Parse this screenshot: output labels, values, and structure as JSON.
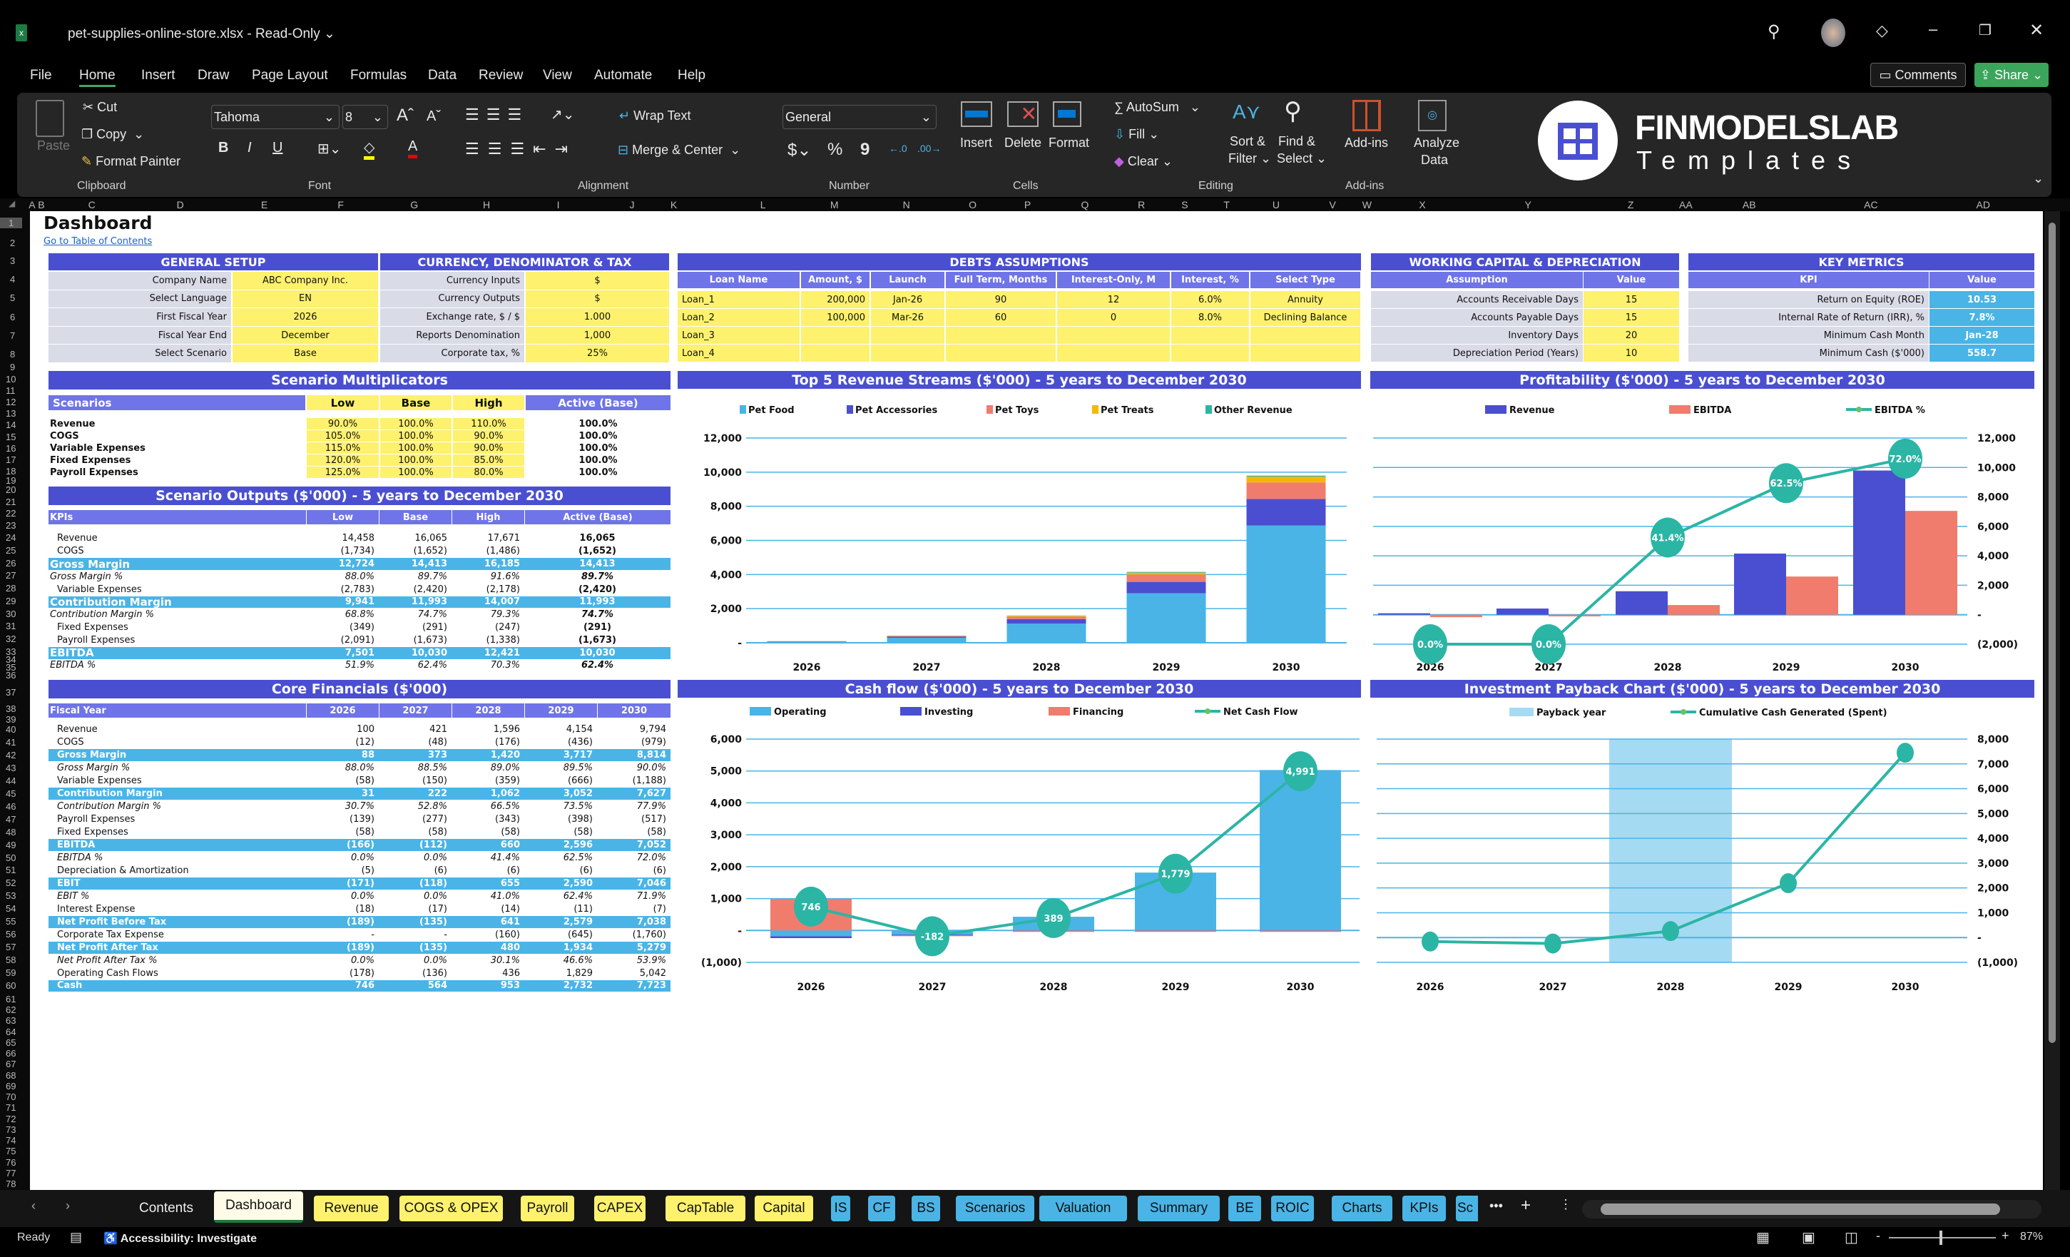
{
  "app": {
    "title": "pet-supplies-online-store.xlsx",
    "mode": "Read-Only",
    "comments": "Comments",
    "share": "Share"
  },
  "menu": [
    "File",
    "Home",
    "Insert",
    "Draw",
    "Page Layout",
    "Formulas",
    "Data",
    "Review",
    "View",
    "Automate",
    "Help"
  ],
  "menu_active": "Home",
  "ribbon": {
    "clipboard": {
      "paste": "Paste",
      "cut": "Cut",
      "copy": "Copy",
      "format_painter": "Format Painter",
      "label": "Clipboard"
    },
    "font": {
      "name": "Tahoma",
      "size": "8",
      "label": "Font",
      "bold": "B",
      "italic": "I",
      "underline": "U"
    },
    "alignment": {
      "wrap": "Wrap Text",
      "merge": "Merge & Center",
      "label": "Alignment"
    },
    "number": {
      "format": "General",
      "currency": "$",
      "percent": "%",
      "comma": "9",
      "label": "Number"
    },
    "cells": {
      "insert": "Insert",
      "delete": "Delete",
      "format": "Format",
      "label": "Cells"
    },
    "editing": {
      "autosum": "AutoSum",
      "fill": "Fill",
      "clear": "Clear",
      "sort1": "Sort &",
      "sort2": "Filter",
      "find1": "Find &",
      "find2": "Select",
      "label": "Editing"
    },
    "addins": {
      "button": "Add-ins",
      "label": "Add-ins"
    },
    "analyze": {
      "l1": "Analyze",
      "l2": "Data"
    }
  },
  "logo": {
    "name": "FINMODELSLAB",
    "tagline": "Templates"
  },
  "sheet": {
    "columns": [
      "A",
      "B",
      "C",
      "D",
      "E",
      "F",
      "G",
      "H",
      "I",
      "J",
      "K",
      "L",
      "M",
      "N",
      "O",
      "P",
      "Q",
      "R",
      "S",
      "T",
      "U",
      "V",
      "W",
      "X",
      "Y",
      "Z",
      "AA",
      "AB",
      "AC",
      "AD"
    ],
    "row_count": 78,
    "title": "Dashboard",
    "link": "Go to Table of Contents"
  },
  "general_setup": {
    "title": "GENERAL SETUP",
    "rows": [
      {
        "label": "Company Name",
        "value": "ABC Company Inc."
      },
      {
        "label": "Select Language",
        "value": "EN"
      },
      {
        "label": "First Fiscal Year",
        "value": "2026"
      },
      {
        "label": "Fiscal Year End",
        "value": "December"
      },
      {
        "label": "Select Scenario",
        "value": "Base"
      }
    ]
  },
  "currency": {
    "title": "CURRENCY, DENOMINATOR & TAX",
    "rows": [
      {
        "label": "Currency Inputs",
        "value": "$"
      },
      {
        "label": "Currency Outputs",
        "value": "$"
      },
      {
        "label": "Exchange rate, $ / $",
        "value": "1.000"
      },
      {
        "label": "Reports Denomination",
        "value": "1,000"
      },
      {
        "label": "Corporate tax, %",
        "value": "25%"
      }
    ]
  },
  "debts": {
    "title": "DEBTS ASSUMPTIONS",
    "headers": [
      "Loan Name",
      "Amount, $",
      "Launch",
      "Full Term, Months",
      "Interest-Only, M",
      "Interest, %",
      "Select Type"
    ],
    "rows": [
      [
        "Loan_1",
        "200,000",
        "Jan-26",
        "90",
        "12",
        "6.0%",
        "Annuity"
      ],
      [
        "Loan_2",
        "100,000",
        "Mar-26",
        "60",
        "0",
        "8.0%",
        "Declining Balance"
      ],
      [
        "Loan_3",
        "",
        "",
        "",
        "",
        "",
        ""
      ],
      [
        "Loan_4",
        "",
        "",
        "",
        "",
        "",
        ""
      ]
    ]
  },
  "working_capital": {
    "title": "WORKING CAPITAL & DEPRECIATION",
    "headers": [
      "Assumption",
      "Value"
    ],
    "rows": [
      {
        "label": "Accounts Receivable Days",
        "value": "15"
      },
      {
        "label": "Accounts Payable Days",
        "value": "15"
      },
      {
        "label": "Inventory Days",
        "value": "20"
      },
      {
        "label": "Depreciation Period (Years)",
        "value": "10"
      }
    ]
  },
  "key_metrics": {
    "title": "KEY METRICS",
    "headers": [
      "KPI",
      "Value"
    ],
    "rows": [
      {
        "label": "Return on Equity (ROE)",
        "value": "10.53"
      },
      {
        "label": "Internal Rate of Return (IRR), %",
        "value": "7.8%"
      },
      {
        "label": "Minimum Cash Month",
        "value": "Jan-28"
      },
      {
        "label": "Minimum Cash ($'000)",
        "value": "558.7"
      }
    ]
  },
  "scenario_multiplicators": {
    "title": "Scenario Multiplicators",
    "headers": [
      "Scenarios",
      "Low",
      "Base",
      "High",
      "Active (Base)"
    ],
    "rows": [
      [
        "Revenue",
        "90.0%",
        "100.0%",
        "110.0%",
        "100.0%"
      ],
      [
        "COGS",
        "105.0%",
        "100.0%",
        "90.0%",
        "100.0%"
      ],
      [
        "Variable Expenses",
        "115.0%",
        "100.0%",
        "90.0%",
        "100.0%"
      ],
      [
        "Fixed Expenses",
        "120.0%",
        "100.0%",
        "85.0%",
        "100.0%"
      ],
      [
        "Payroll Expenses",
        "125.0%",
        "100.0%",
        "80.0%",
        "100.0%"
      ]
    ]
  },
  "scenario_outputs": {
    "title": "Scenario Outputs ($'000) - 5 years to December 2030",
    "headers": [
      "KPIs",
      "Low",
      "Base",
      "High",
      "Active (Base)"
    ],
    "rows": [
      {
        "kind": "line",
        "label": "Revenue",
        "values": [
          "14,458",
          "16,065",
          "17,671",
          "16,065"
        ]
      },
      {
        "kind": "line",
        "label": "COGS",
        "values": [
          "(1,734)",
          "(1,652)",
          "(1,486)",
          "(1,652)"
        ]
      },
      {
        "kind": "total",
        "label": "Gross Margin",
        "values": [
          "12,724",
          "14,413",
          "16,185",
          "14,413"
        ]
      },
      {
        "kind": "pct",
        "label": "Gross Margin %",
        "values": [
          "88.0%",
          "89.7%",
          "91.6%",
          "89.7%"
        ]
      },
      {
        "kind": "line",
        "label": "Variable Expenses",
        "values": [
          "(2,783)",
          "(2,420)",
          "(2,178)",
          "(2,420)"
        ]
      },
      {
        "kind": "total",
        "label": "Contribution Margin",
        "values": [
          "9,941",
          "11,993",
          "14,007",
          "11,993"
        ]
      },
      {
        "kind": "pct",
        "label": "Contribution Margin %",
        "values": [
          "68.8%",
          "74.7%",
          "79.3%",
          "74.7%"
        ]
      },
      {
        "kind": "line",
        "label": "Fixed Expenses",
        "values": [
          "(349)",
          "(291)",
          "(247)",
          "(291)"
        ]
      },
      {
        "kind": "line",
        "label": "Payroll Expenses",
        "values": [
          "(2,091)",
          "(1,673)",
          "(1,338)",
          "(1,673)"
        ]
      },
      {
        "kind": "total",
        "label": "EBITDA",
        "values": [
          "7,501",
          "10,030",
          "12,421",
          "10,030"
        ]
      },
      {
        "kind": "pct",
        "label": "EBITDA %",
        "values": [
          "51.9%",
          "62.4%",
          "70.3%",
          "62.4%"
        ]
      }
    ]
  },
  "core_financials": {
    "title": "Core Financials ($'000)",
    "headers": [
      "Fiscal Year",
      "2026",
      "2027",
      "2028",
      "2029",
      "2030"
    ],
    "rows": [
      {
        "kind": "line",
        "label": "Revenue",
        "values": [
          "100",
          "421",
          "1,596",
          "4,154",
          "9,794"
        ]
      },
      {
        "kind": "line",
        "label": "COGS",
        "values": [
          "(12)",
          "(48)",
          "(176)",
          "(436)",
          "(979)"
        ]
      },
      {
        "kind": "total",
        "label": "Gross Margin",
        "values": [
          "88",
          "373",
          "1,420",
          "3,717",
          "8,814"
        ]
      },
      {
        "kind": "pct",
        "label": "Gross Margin %",
        "values": [
          "88.0%",
          "88.5%",
          "89.0%",
          "89.5%",
          "90.0%"
        ]
      },
      {
        "kind": "line",
        "label": "Variable Expenses",
        "values": [
          "(58)",
          "(150)",
          "(359)",
          "(666)",
          "(1,188)"
        ]
      },
      {
        "kind": "total",
        "label": "Contribution Margin",
        "values": [
          "31",
          "222",
          "1,062",
          "3,052",
          "7,627"
        ]
      },
      {
        "kind": "pct",
        "label": "Contribution Margin %",
        "values": [
          "30.7%",
          "52.8%",
          "66.5%",
          "73.5%",
          "77.9%"
        ]
      },
      {
        "kind": "line",
        "label": "Payroll Expenses",
        "values": [
          "(139)",
          "(277)",
          "(343)",
          "(398)",
          "(517)"
        ]
      },
      {
        "kind": "line",
        "label": "Fixed Expenses",
        "values": [
          "(58)",
          "(58)",
          "(58)",
          "(58)",
          "(58)"
        ]
      },
      {
        "kind": "total",
        "label": "EBITDA",
        "values": [
          "(166)",
          "(112)",
          "660",
          "2,596",
          "7,052"
        ]
      },
      {
        "kind": "pct",
        "label": "EBITDA %",
        "values": [
          "0.0%",
          "0.0%",
          "41.4%",
          "62.5%",
          "72.0%"
        ]
      },
      {
        "kind": "line",
        "label": "Depreciation & Amortization",
        "values": [
          "(5)",
          "(6)",
          "(6)",
          "(6)",
          "(6)"
        ]
      },
      {
        "kind": "total",
        "label": "EBIT",
        "values": [
          "(171)",
          "(118)",
          "655",
          "2,590",
          "7,046"
        ]
      },
      {
        "kind": "pct",
        "label": "EBIT %",
        "values": [
          "0.0%",
          "0.0%",
          "41.0%",
          "62.4%",
          "71.9%"
        ]
      },
      {
        "kind": "line",
        "label": "Interest Expense",
        "values": [
          "(18)",
          "(17)",
          "(14)",
          "(11)",
          "(7)"
        ]
      },
      {
        "kind": "total",
        "label": "Net Profit Before Tax",
        "values": [
          "(189)",
          "(135)",
          "641",
          "2,579",
          "7,038"
        ]
      },
      {
        "kind": "line",
        "label": "Corporate Tax Expense",
        "values": [
          "-",
          "-",
          "(160)",
          "(645)",
          "(1,760)"
        ]
      },
      {
        "kind": "total",
        "label": "Net Profit After Tax",
        "values": [
          "(189)",
          "(135)",
          "480",
          "1,934",
          "5,279"
        ]
      },
      {
        "kind": "pct",
        "label": "Net Profit After Tax %",
        "values": [
          "0.0%",
          "0.0%",
          "30.1%",
          "46.6%",
          "53.9%"
        ]
      },
      {
        "kind": "line",
        "label": "Operating Cash Flows",
        "values": [
          "(178)",
          "(136)",
          "436",
          "1,829",
          "5,042"
        ]
      },
      {
        "kind": "total",
        "label": "Cash",
        "values": [
          "746",
          "564",
          "953",
          "2,732",
          "7,723"
        ]
      }
    ]
  },
  "chart_data": [
    {
      "type": "bar",
      "stacked": true,
      "title": "Top 5 Revenue Streams ($'000) - 5 years to December 2030",
      "categories": [
        "2026",
        "2027",
        "2028",
        "2029",
        "2030"
      ],
      "series": [
        {
          "name": "Pet Food",
          "color": "#4ab4e6",
          "values": [
            70,
            290,
            1120,
            2900,
            6870
          ]
        },
        {
          "name": "Pet Accessories",
          "color": "#4a4fd1",
          "values": [
            15,
            70,
            270,
            670,
            1560
          ]
        },
        {
          "name": "Pet Toys",
          "color": "#f07c6e",
          "values": [
            8,
            35,
            140,
            430,
            970
          ]
        },
        {
          "name": "Pet Treats",
          "color": "#f5b800",
          "values": [
            5,
            20,
            50,
            110,
            340
          ]
        },
        {
          "name": "Other Revenue",
          "color": "#2bb5a5",
          "values": [
            2,
            6,
            16,
            44,
            54
          ]
        }
      ],
      "ylim": [
        0,
        12000
      ],
      "yticks": [
        0,
        2000,
        4000,
        6000,
        8000,
        10000,
        12000
      ],
      "ytick_labels": [
        "-",
        "2,000",
        "4,000",
        "6,000",
        "8,000",
        "10,000",
        "12,000"
      ],
      "legend": "top",
      "grid": true
    },
    {
      "type": "bar",
      "stacked": false,
      "title": "Profitability ($'000) - 5 years to December 2030",
      "categories": [
        "2026",
        "2027",
        "2028",
        "2029",
        "2030"
      ],
      "series": [
        {
          "name": "Revenue",
          "color": "#4a4fd1",
          "values": [
            100,
            421,
            1596,
            4154,
            9794
          ]
        },
        {
          "name": "EBITDA",
          "color": "#f07c6e",
          "values": [
            -166,
            -112,
            660,
            2596,
            7052
          ]
        },
        {
          "name": "EBITDA %",
          "type": "line",
          "axis": "secondary",
          "color": "#2bb5a5",
          "values": [
            0.0,
            0.0,
            41.4,
            62.5,
            72.0
          ],
          "labels": [
            "0.0%",
            "0.0%",
            "41.4%",
            "62.5%",
            "72.0%"
          ]
        }
      ],
      "ylim": [
        -2000,
        12000
      ],
      "y2lim": [
        0,
        80
      ],
      "yaxis_side": "right",
      "yticks": [
        -2000,
        0,
        2000,
        4000,
        6000,
        8000,
        10000,
        12000
      ],
      "ytick_labels": [
        "(2,000)",
        "-",
        "2,000",
        "4,000",
        "6,000",
        "8,000",
        "10,000",
        "12,000"
      ],
      "legend": "top",
      "grid": true
    },
    {
      "type": "bar",
      "stacked": true,
      "title": "Cash flow ($'000) - 5 years to December 2030",
      "categories": [
        "2026",
        "2027",
        "2028",
        "2029",
        "2030"
      ],
      "series": [
        {
          "name": "Operating",
          "color": "#4ab4e6",
          "values": [
            -180,
            -130,
            430,
            1815,
            5030
          ]
        },
        {
          "name": "Investing",
          "color": "#4a4fd1",
          "values": [
            -60,
            -20,
            -5,
            -5,
            -5
          ]
        },
        {
          "name": "Financing",
          "color": "#f07c6e",
          "values": [
            990,
            -30,
            -40,
            -40,
            -40
          ]
        },
        {
          "name": "Net Cash Flow",
          "type": "line",
          "color": "#2bb5a5",
          "values": [
            746,
            -182,
            389,
            1779,
            4991
          ],
          "labels": [
            "746",
            "-182",
            "389",
            "1,779",
            "4,991"
          ]
        }
      ],
      "ylim": [
        -1000,
        6000
      ],
      "yticks": [
        -1000,
        0,
        1000,
        2000,
        3000,
        4000,
        5000,
        6000
      ],
      "ytick_labels": [
        "(1,000)",
        "-",
        "1,000",
        "2,000",
        "3,000",
        "4,000",
        "5,000",
        "6,000"
      ],
      "legend": "top",
      "grid": true
    },
    {
      "type": "line",
      "title": "Investment Payback Chart ($'000) - 5 years to December 2030",
      "categories": [
        "2026",
        "2027",
        "2028",
        "2029",
        "2030"
      ],
      "series": [
        {
          "name": "Payback year",
          "type": "band",
          "color": "#a5daf3",
          "category": "2028"
        },
        {
          "name": "Cumulative Cash Generated (Spent)",
          "type": "line",
          "color": "#2bb5a5",
          "values": [
            -160,
            -240,
            260,
            2190,
            7450
          ]
        }
      ],
      "ylim": [
        -1000,
        8000
      ],
      "yaxis_side": "right",
      "yticks": [
        -1000,
        0,
        1000,
        2000,
        3000,
        4000,
        5000,
        6000,
        7000,
        8000
      ],
      "ytick_labels": [
        "(1,000)",
        "-",
        "1,000",
        "2,000",
        "3,000",
        "4,000",
        "5,000",
        "6,000",
        "7,000",
        "8,000"
      ],
      "legend": "top",
      "grid": true
    }
  ],
  "tabs": [
    {
      "label": "Contents",
      "color": "none"
    },
    {
      "label": "Dashboard",
      "color": "active"
    },
    {
      "label": "Revenue",
      "color": "#fdf16e"
    },
    {
      "label": "COGS & OPEX",
      "color": "#fdf16e"
    },
    {
      "label": "Payroll",
      "color": "#fdf16e"
    },
    {
      "label": "CAPEX",
      "color": "#fdf16e"
    },
    {
      "label": "CapTable",
      "color": "#fdf16e"
    },
    {
      "label": "Capital",
      "color": "#fdf16e"
    },
    {
      "label": "IS",
      "color": "#4ab4e6"
    },
    {
      "label": "CF",
      "color": "#4ab4e6"
    },
    {
      "label": "BS",
      "color": "#4ab4e6"
    },
    {
      "label": "Scenarios",
      "color": "#4ab4e6"
    },
    {
      "label": "Valuation",
      "color": "#4ab4e6"
    },
    {
      "label": "Summary",
      "color": "#4ab4e6"
    },
    {
      "label": "BE",
      "color": "#4ab4e6"
    },
    {
      "label": "ROIC",
      "color": "#4ab4e6"
    },
    {
      "label": "Charts",
      "color": "#4ab4e6"
    },
    {
      "label": "KPIs",
      "color": "#4ab4e6"
    },
    {
      "label": "Sc",
      "color": "#4ab4e6"
    }
  ],
  "status": {
    "ready": "Ready",
    "accessibility": "Accessibility: Investigate",
    "zoom": "87%",
    "zoom_level": 0.87
  }
}
